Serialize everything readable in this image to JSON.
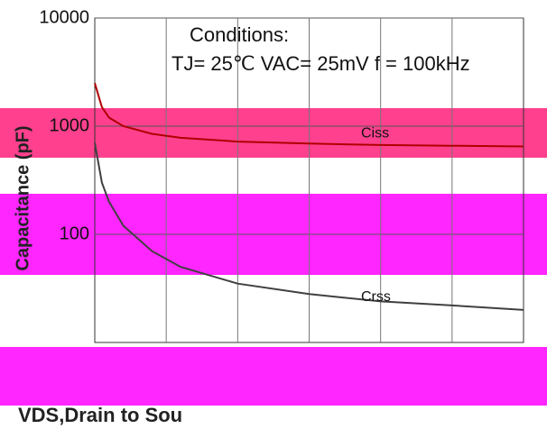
{
  "chart_data": {
    "type": "line",
    "y_label": "Capacitance (pF)",
    "x_label": "VDS,Drain to Sou",
    "annotations": [
      "Conditions:",
      "TJ= 25℃ VAC= 25mV f = 100kHz"
    ],
    "log_y": true,
    "grid": true,
    "xlim": [
      0,
      30
    ],
    "ylim": [
      10,
      10000
    ],
    "yticks": [
      10000,
      1000,
      100
    ],
    "x": [
      0,
      0.5,
      1,
      2,
      4,
      6,
      10,
      15,
      20,
      25,
      30
    ],
    "series": [
      {
        "name": "Ciss",
        "color": "#b00000",
        "values": [
          2500,
          1500,
          1200,
          1000,
          850,
          780,
          720,
          690,
          670,
          660,
          650
        ]
      },
      {
        "name": "Crss",
        "color": "#404040",
        "values": [
          700,
          300,
          200,
          120,
          70,
          50,
          35,
          28,
          24,
          22,
          20
        ]
      }
    ]
  }
}
